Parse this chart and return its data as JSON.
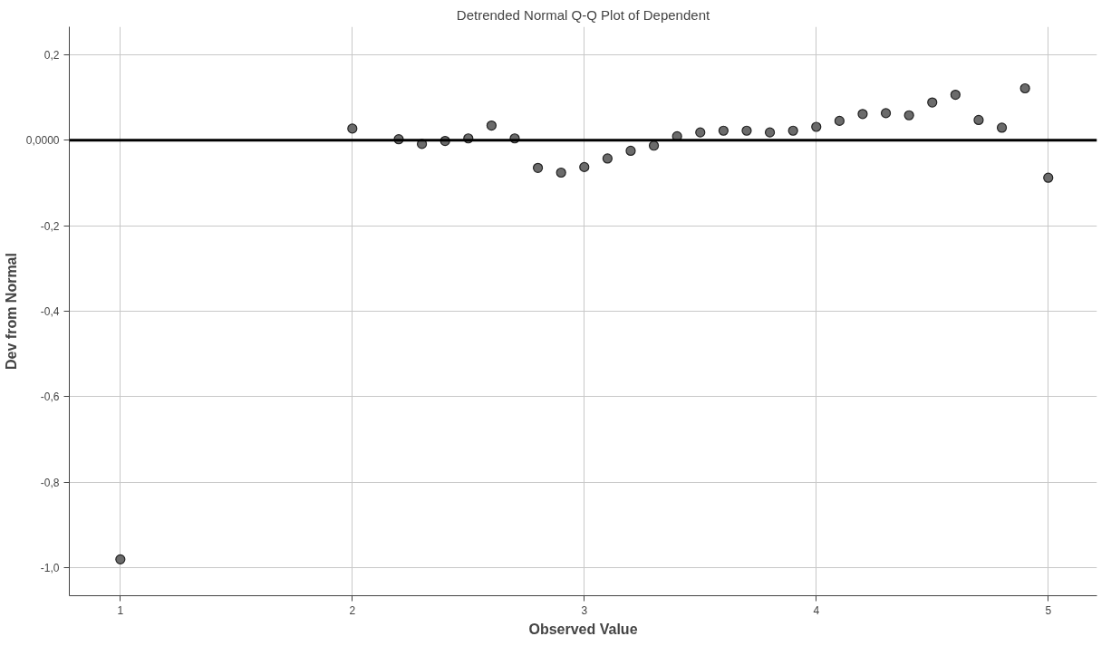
{
  "chart_data": {
    "type": "scatter",
    "title": "Detrended Normal Q-Q Plot of Dependent",
    "xlabel": "Observed Value",
    "ylabel": "Dev from Normal",
    "x": [
      1,
      2,
      2.2,
      2.3,
      2.4,
      2.5,
      2.6,
      2.7,
      2.8,
      2.9,
      3,
      3.1,
      3.2,
      3.3,
      3.4,
      3.5,
      3.6,
      3.7,
      3.8,
      3.9,
      4,
      4.1,
      4.2,
      4.3,
      4.4,
      4.5,
      4.6,
      4.7,
      4.8,
      4.9,
      5
    ],
    "values": [
      -0.98,
      0.027,
      0.002,
      -0.009,
      -0.002,
      0.004,
      0.034,
      0.004,
      -0.065,
      -0.076,
      -0.063,
      -0.043,
      -0.025,
      -0.013,
      0.009,
      0.018,
      0.022,
      0.022,
      0.018,
      0.022,
      0.031,
      0.045,
      0.061,
      0.063,
      0.058,
      0.088,
      0.106,
      0.047,
      0.029,
      0.121,
      -0.088
    ],
    "color": "#6b6b6b",
    "marker": "circle",
    "xlim": [
      0.78,
      5.21
    ],
    "ylim": [
      -1.065,
      0.265
    ],
    "xticks": [
      1,
      2,
      3,
      4,
      5
    ],
    "yticks": [
      {
        "value": 0.2,
        "label": "0,2"
      },
      {
        "value": 0,
        "label": "0,0000"
      },
      {
        "value": -0.2,
        "label": "-0,2"
      },
      {
        "value": -0.4,
        "label": "-0,4"
      },
      {
        "value": -0.6,
        "label": "-0,6"
      },
      {
        "value": -0.8,
        "label": "-0,8"
      },
      {
        "value": -1.0,
        "label": "-1,0"
      }
    ],
    "grid": true,
    "ref_lines": [
      {
        "axis": "y",
        "value": 0,
        "color": "#000000"
      }
    ]
  }
}
